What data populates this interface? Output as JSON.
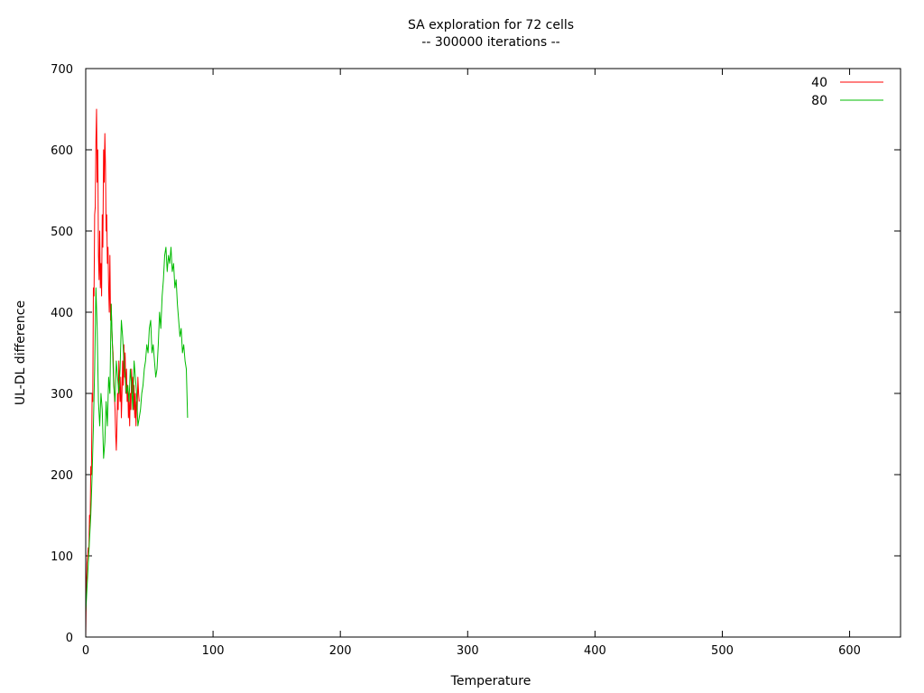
{
  "chart_data": {
    "type": "line",
    "title": "SA exploration for 72 cells",
    "subtitle": "-- 300000 iterations --",
    "xlabel": "Temperature",
    "ylabel": "UL-DL difference",
    "xlim": [
      0,
      640
    ],
    "ylim": [
      0,
      700
    ],
    "xticks": [
      0,
      100,
      200,
      300,
      400,
      500,
      600
    ],
    "yticks": [
      0,
      100,
      200,
      300,
      400,
      500,
      600,
      700
    ],
    "grid": false,
    "legend_position": "top-right",
    "series": [
      {
        "name": "40",
        "color": "#ff0000",
        "x": [
          0,
          0.5,
          1,
          1.5,
          2,
          2.5,
          3,
          3.5,
          4,
          4.5,
          5,
          5.5,
          6,
          6.5,
          7,
          7.5,
          8,
          8.5,
          9,
          9.5,
          10,
          10.5,
          11,
          11.5,
          12,
          12.5,
          13,
          13.5,
          14,
          14.5,
          15,
          15.5,
          16,
          16.5,
          17,
          17.5,
          18,
          18.5,
          19,
          19.5,
          20,
          20.5,
          21,
          21.5,
          22,
          22.5,
          23,
          23.5,
          24,
          24.5,
          25,
          25.5,
          26,
          26.5,
          27,
          27.5,
          28,
          28.5,
          29,
          29.5,
          30,
          30.5,
          31,
          31.5,
          32,
          32.5,
          33,
          33.5,
          34,
          34.5,
          35,
          35.5,
          36,
          36.5,
          37,
          37.5,
          38,
          38.5,
          39,
          39.5,
          40,
          40.5,
          41,
          41.5,
          42
        ],
        "y": [
          0,
          60,
          90,
          100,
          110,
          105,
          150,
          140,
          210,
          200,
          300,
          290,
          430,
          420,
          520,
          530,
          610,
          650,
          560,
          600,
          470,
          440,
          500,
          430,
          460,
          420,
          520,
          480,
          600,
          560,
          620,
          580,
          500,
          520,
          460,
          480,
          430,
          400,
          470,
          390,
          410,
          380,
          360,
          350,
          320,
          300,
          280,
          250,
          230,
          260,
          300,
          280,
          340,
          310,
          290,
          320,
          270,
          300,
          340,
          310,
          360,
          320,
          350,
          300,
          330,
          290,
          310,
          270,
          290,
          260,
          300,
          280,
          330,
          300,
          320,
          280,
          310,
          270,
          300,
          260,
          290,
          280,
          320,
          300,
          290
        ]
      },
      {
        "name": "80",
        "color": "#00bb00",
        "x": [
          0,
          1,
          2,
          3,
          4,
          5,
          6,
          7,
          8,
          9,
          10,
          11,
          12,
          13,
          14,
          15,
          16,
          17,
          18,
          19,
          20,
          21,
          22,
          23,
          24,
          25,
          26,
          27,
          28,
          29,
          30,
          31,
          32,
          33,
          34,
          35,
          36,
          37,
          38,
          39,
          40,
          41,
          42,
          43,
          44,
          45,
          46,
          47,
          48,
          49,
          50,
          51,
          52,
          53,
          54,
          55,
          56,
          57,
          58,
          59,
          60,
          61,
          62,
          63,
          64,
          65,
          66,
          67,
          68,
          69,
          70,
          71,
          72,
          73,
          74,
          75,
          76,
          77,
          78,
          79,
          80
        ],
        "y": [
          30,
          60,
          90,
          120,
          150,
          200,
          260,
          330,
          430,
          380,
          290,
          260,
          300,
          280,
          220,
          240,
          290,
          260,
          320,
          300,
          410,
          360,
          310,
          290,
          340,
          320,
          300,
          330,
          390,
          370,
          340,
          320,
          300,
          310,
          290,
          330,
          310,
          280,
          340,
          320,
          300,
          260,
          270,
          280,
          300,
          310,
          330,
          340,
          360,
          350,
          380,
          390,
          350,
          360,
          340,
          320,
          330,
          360,
          400,
          380,
          420,
          440,
          470,
          480,
          450,
          470,
          460,
          480,
          450,
          460,
          430,
          440,
          410,
          390,
          370,
          380,
          350,
          360,
          340,
          330,
          270
        ]
      }
    ]
  }
}
